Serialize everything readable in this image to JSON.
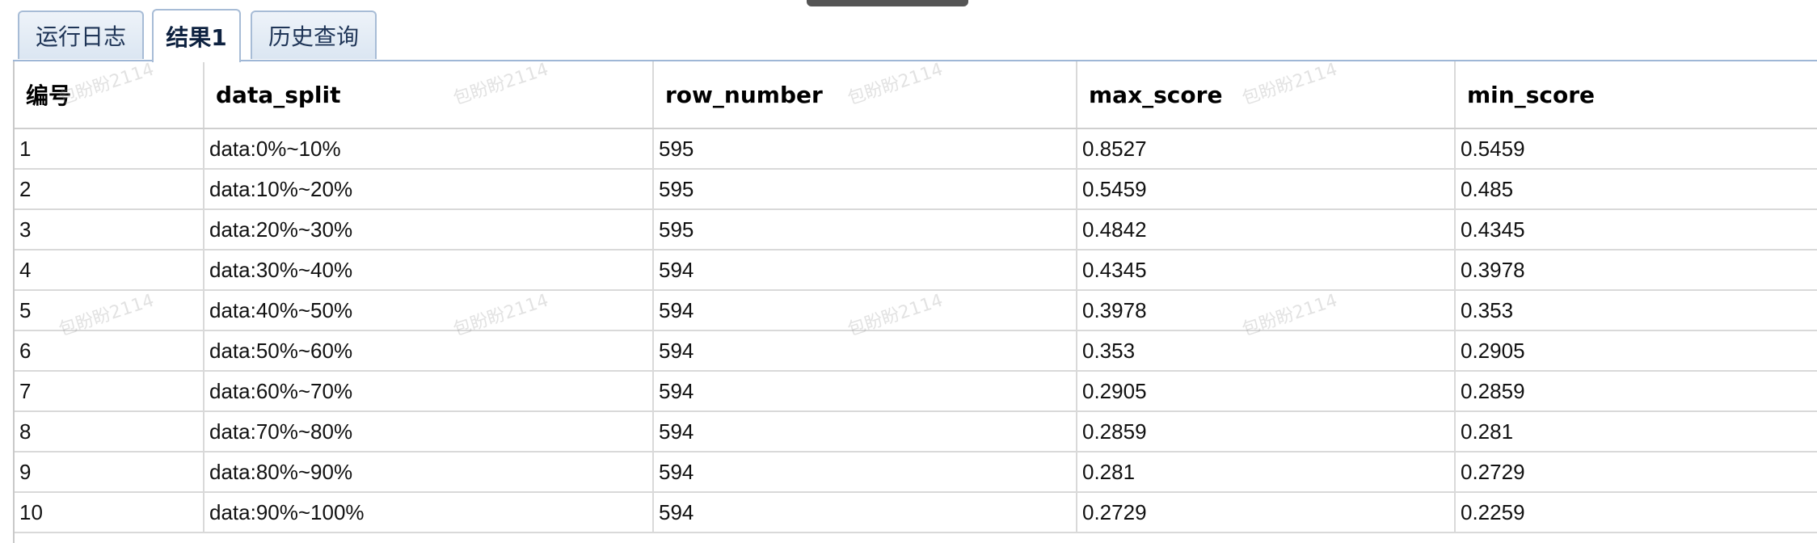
{
  "tabs": [
    {
      "label": "运行日志",
      "active": false
    },
    {
      "label": "结果1",
      "active": true
    },
    {
      "label": "历史查询",
      "active": false
    }
  ],
  "table": {
    "columns": [
      "编号",
      "data_split",
      "row_number",
      "max_score",
      "min_score"
    ],
    "rows": [
      [
        "1",
        "data:0%~10%",
        "595",
        "0.8527",
        "0.5459"
      ],
      [
        "2",
        "data:10%~20%",
        "595",
        "0.5459",
        "0.485"
      ],
      [
        "3",
        "data:20%~30%",
        "595",
        "0.4842",
        "0.4345"
      ],
      [
        "4",
        "data:30%~40%",
        "594",
        "0.4345",
        "0.3978"
      ],
      [
        "5",
        "data:40%~50%",
        "594",
        "0.3978",
        "0.353"
      ],
      [
        "6",
        "data:50%~60%",
        "594",
        "0.353",
        "0.2905"
      ],
      [
        "7",
        "data:60%~70%",
        "594",
        "0.2905",
        "0.2859"
      ],
      [
        "8",
        "data:70%~80%",
        "594",
        "0.2859",
        "0.281"
      ],
      [
        "9",
        "data:80%~90%",
        "594",
        "0.281",
        "0.2729"
      ],
      [
        "10",
        "data:90%~100%",
        "594",
        "0.2729",
        "0.2259"
      ]
    ]
  },
  "watermark": "包盼盼2114"
}
